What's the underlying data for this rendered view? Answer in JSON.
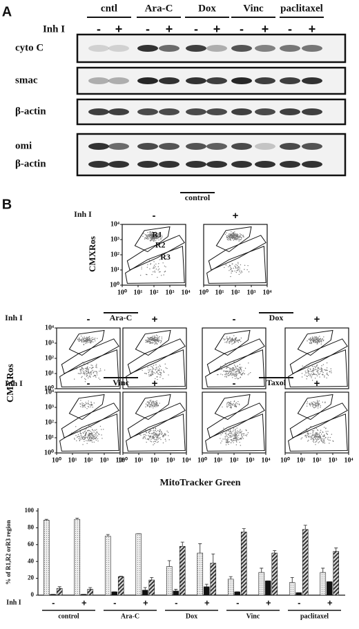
{
  "panel_a": {
    "label": "A",
    "treatment_label": "Inh I",
    "conditions": [
      "cntl",
      "Ara-C",
      "Dox",
      "Vinc",
      "paclitaxel"
    ],
    "lanes": [
      "-",
      "+"
    ],
    "blots": [
      "cyto C",
      "smac",
      "β-actin",
      "omi",
      "β-actin"
    ]
  },
  "panel_b": {
    "label": "B",
    "inhibitor_label": "Inh I",
    "lanes": [
      "-",
      "+"
    ],
    "y_axis_label": "CMXRos",
    "x_axis_label": "MitoTracker Green",
    "regions": [
      "R1",
      "R2",
      "R3"
    ],
    "conditions": [
      "control",
      "Ara-C",
      "Dox",
      "Vinc",
      "Taxol"
    ],
    "log_scale": true,
    "lim": [
      1,
      10000
    ],
    "ticks": [
      {
        "value": 1,
        "label": "10⁰"
      },
      {
        "value": 10,
        "label": "10¹"
      },
      {
        "value": 100,
        "label": "10²"
      },
      {
        "value": 1000,
        "label": "10³"
      },
      {
        "value": 10000,
        "label": "10⁴"
      }
    ]
  },
  "chart_data": {
    "type": "bar",
    "y_label": "% of R1,R2 orR3 region",
    "x_label": "Inh I",
    "groups": [
      "control",
      "Ara-C",
      "Dox",
      "Vinc",
      "paclitaxel"
    ],
    "categories": [
      "-",
      "+",
      "-",
      "+",
      "-",
      "+",
      "-",
      "+",
      "-",
      "+"
    ],
    "series": [
      {
        "color": "#e4e4e4",
        "pattern": "dots",
        "values": [
          89,
          90,
          70,
          73,
          34,
          50,
          19,
          27,
          15,
          27
        ],
        "errors": [
          1,
          1.5,
          2,
          0,
          7,
          11,
          3,
          5,
          6,
          5
        ]
      },
      {
        "color": "#111111",
        "pattern": "solid",
        "values": [
          1,
          1,
          4,
          6,
          5,
          10,
          4,
          17,
          3,
          16
        ],
        "errors": [
          0,
          0,
          0,
          3,
          2,
          3,
          0,
          0,
          0,
          0
        ]
      },
      {
        "color": "#555555",
        "pattern": "hatch",
        "values": [
          8,
          7,
          22,
          18,
          58,
          38,
          75,
          50,
          78,
          52
        ],
        "errors": [
          2,
          2,
          0.5,
          3,
          5,
          11,
          4,
          3,
          5,
          4
        ]
      }
    ],
    "ylim": [
      0,
      100
    ],
    "yticks": [
      0,
      20,
      40,
      60,
      80,
      100
    ]
  }
}
